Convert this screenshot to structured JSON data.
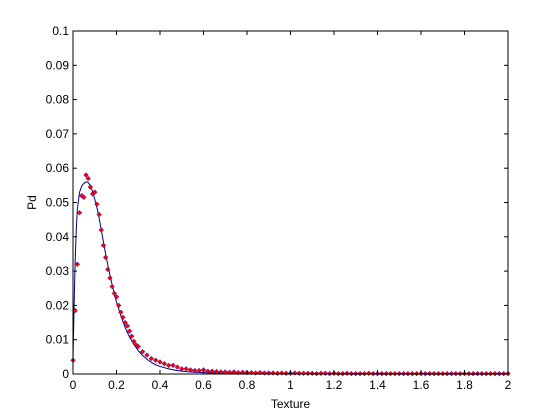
{
  "chart_data": {
    "type": "scatter",
    "title": "",
    "xlabel": "Texture",
    "ylabel": "Pd",
    "xlim": [
      0,
      2
    ],
    "ylim": [
      0,
      0.1
    ],
    "grid": false,
    "legend": "none",
    "x_ticks": [
      0,
      0.2,
      0.4,
      0.6,
      0.8,
      1,
      1.2,
      1.4,
      1.6,
      1.8,
      2
    ],
    "x_tick_labels": [
      "0",
      "0.2",
      "0.4",
      "0.6",
      "0.8",
      "1",
      "1.2",
      "1.4",
      "1.6",
      "1.8",
      "2"
    ],
    "y_ticks": [
      0,
      0.01,
      0.02,
      0.03,
      0.04,
      0.05,
      0.06,
      0.07,
      0.08,
      0.09,
      0.1
    ],
    "y_tick_labels": [
      "0",
      "0.01",
      "0.02",
      "0.03",
      "0.04",
      "0.05",
      "0.06",
      "0.07",
      "0.08",
      "0.09",
      "0.1"
    ],
    "series": [
      {
        "kind": "markers",
        "color": "#ff0000",
        "edge_color": "#0000cc",
        "x": [
          0.0,
          0.01,
          0.02,
          0.03,
          0.04,
          0.05,
          0.06,
          0.07,
          0.08,
          0.09,
          0.1,
          0.11,
          0.12,
          0.13,
          0.14,
          0.15,
          0.16,
          0.17,
          0.18,
          0.19,
          0.2,
          0.21,
          0.22,
          0.23,
          0.24,
          0.25,
          0.26,
          0.27,
          0.28,
          0.29,
          0.3,
          0.32,
          0.34,
          0.36,
          0.38,
          0.4,
          0.42,
          0.44,
          0.46,
          0.48,
          0.5,
          0.52,
          0.54,
          0.56,
          0.58,
          0.6,
          0.62,
          0.64,
          0.66,
          0.68,
          0.7,
          0.72,
          0.74,
          0.76,
          0.78,
          0.8,
          0.82,
          0.84,
          0.86,
          0.88,
          0.9,
          0.92,
          0.94,
          0.96,
          0.98,
          1.0,
          1.02,
          1.04,
          1.06,
          1.08,
          1.1,
          1.12,
          1.14,
          1.16,
          1.18,
          1.2,
          1.22,
          1.24,
          1.26,
          1.28,
          1.3,
          1.32,
          1.34,
          1.36,
          1.38,
          1.4,
          1.42,
          1.44,
          1.46,
          1.48,
          1.5,
          1.52,
          1.54,
          1.56,
          1.58,
          1.6,
          1.62,
          1.64,
          1.66,
          1.68,
          1.7,
          1.72,
          1.74,
          1.76,
          1.78,
          1.8,
          1.82,
          1.84,
          1.86,
          1.88,
          1.9,
          1.92,
          1.94,
          1.96,
          1.98,
          2.0
        ],
        "y": [
          0.004,
          0.0185,
          0.032,
          0.047,
          0.052,
          0.0515,
          0.058,
          0.057,
          0.0545,
          0.0525,
          0.053,
          0.0495,
          0.0465,
          0.042,
          0.0375,
          0.034,
          0.0305,
          0.028,
          0.0255,
          0.0235,
          0.0225,
          0.02,
          0.018,
          0.0165,
          0.015,
          0.014,
          0.0125,
          0.011,
          0.0095,
          0.0085,
          0.008,
          0.0065,
          0.0055,
          0.0045,
          0.004,
          0.0035,
          0.003,
          0.0025,
          0.0025,
          0.002,
          0.0015,
          0.0015,
          0.0012,
          0.001,
          0.001,
          0.0012,
          0.0008,
          0.0008,
          0.0007,
          0.0006,
          0.0006,
          0.0005,
          0.0006,
          0.0004,
          0.0005,
          0.0004,
          0.0004,
          0.0003,
          0.0004,
          0.0003,
          0.0003,
          0.0003,
          0.0002,
          0.0003,
          0.0002,
          0.0002,
          0.0003,
          0.0002,
          0.0002,
          0.0002,
          0.0002,
          0.0001,
          0.0002,
          0.0002,
          0.0001,
          0.0002,
          0.0001,
          0.0001,
          0.0002,
          0.0001,
          0.0001,
          0.0001,
          0.0001,
          0.0002,
          0.0001,
          0.0001,
          0.0001,
          0.0001,
          0.0001,
          0.0001,
          0.0001,
          0.0001,
          0.0001,
          0.0001,
          0.0001,
          0.0001,
          0.0001,
          0.0001,
          0.0001,
          0.0001,
          0.0001,
          0.0001,
          0.0001,
          0.0001,
          0.0001,
          0.0001,
          0.0001,
          0.0001,
          0.0001,
          0.0001,
          0.0001,
          0.0001,
          0.0001,
          0.0001,
          0.0001,
          0.0001
        ]
      },
      {
        "kind": "line",
        "color": "#000080",
        "x": [
          0.0,
          0.005,
          0.01,
          0.015,
          0.02,
          0.03,
          0.04,
          0.05,
          0.06,
          0.065,
          0.07,
          0.08,
          0.09,
          0.1,
          0.11,
          0.12,
          0.13,
          0.14,
          0.15,
          0.16,
          0.17,
          0.18,
          0.19,
          0.2,
          0.22,
          0.24,
          0.26,
          0.28,
          0.3,
          0.32,
          0.34,
          0.36,
          0.38,
          0.4,
          0.44,
          0.48,
          0.52,
          0.56,
          0.6,
          0.65,
          0.7,
          0.75,
          0.8,
          0.9,
          1.0,
          1.1,
          1.2,
          1.3,
          1.4,
          1.5,
          1.6,
          1.7,
          1.8,
          1.9,
          2.0
        ],
        "y": [
          0.004,
          0.02,
          0.033,
          0.042,
          0.048,
          0.053,
          0.0548,
          0.0556,
          0.056,
          0.056,
          0.0558,
          0.0549,
          0.0532,
          0.051,
          0.0485,
          0.0455,
          0.042,
          0.0385,
          0.035,
          0.0318,
          0.0288,
          0.026,
          0.0234,
          0.021,
          0.017,
          0.0135,
          0.0108,
          0.0086,
          0.0068,
          0.0054,
          0.0043,
          0.0034,
          0.0027,
          0.0022,
          0.0015,
          0.001,
          0.0007,
          0.0005,
          0.0004,
          0.0003,
          0.0002,
          0.0002,
          0.0001,
          0.0001,
          0.0001,
          0.0001,
          0.0001,
          0.0001,
          0.0001,
          0.0001,
          0.0001,
          0.0001,
          0.0001,
          0.0001,
          0.0001
        ]
      }
    ]
  }
}
